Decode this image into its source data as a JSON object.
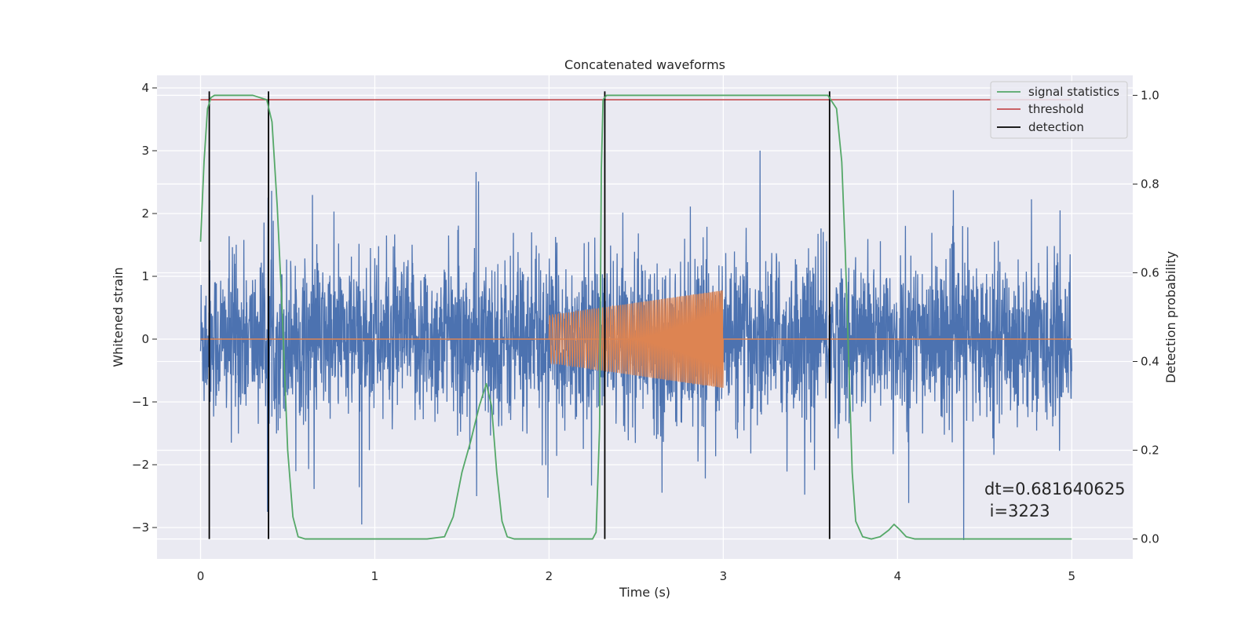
{
  "chart_data": {
    "type": "line",
    "title": "Concatenated waveforms",
    "xlabel": "Time (s)",
    "ylabel": "Whitened strain",
    "ylabel_right": "Detection probability",
    "xlim": [
      -0.25,
      5.35
    ],
    "ylim": [
      -3.5,
      4.2
    ],
    "ylim_right": [
      -0.045,
      1.045
    ],
    "x_ticks": [
      0,
      1,
      2,
      3,
      4,
      5
    ],
    "x_tick_labels": [
      "0",
      "1",
      "2",
      "3",
      "4",
      "5"
    ],
    "y_ticks": [
      4,
      3,
      2,
      1,
      0,
      -1,
      -2,
      -3
    ],
    "y_tick_labels": [
      "4",
      "3",
      "2",
      "1",
      "0",
      "−1",
      "−2",
      "−3"
    ],
    "y_ticks_right": [
      1.0,
      0.8,
      0.6,
      0.4,
      0.2,
      0.0
    ],
    "y_tick_labels_right": [
      "1.0",
      "0.8",
      "0.6",
      "0.4",
      "0.2",
      "0.0"
    ],
    "grid": true,
    "legend": {
      "position": "top-right",
      "entries": [
        {
          "label": "signal statistics",
          "color": "#55a868"
        },
        {
          "label": "threshold",
          "color": "#c44e52"
        },
        {
          "label": "detection",
          "color": "#000000"
        }
      ]
    },
    "series": [
      {
        "role": "strain-noise",
        "axis": "left",
        "color": "#4c72b0",
        "x_range": [
          0,
          5
        ],
        "y_range_approx": [
          -3.2,
          3.85
        ]
      },
      {
        "role": "injected-chirp",
        "axis": "left",
        "color": "#dd8452",
        "x_range": [
          2.0,
          3.0
        ],
        "amplitude_start": 0.38,
        "amplitude_end": 0.78
      },
      {
        "name": "signal statistics",
        "axis": "right",
        "color": "#55a868",
        "x": [
          0,
          0.02,
          0.04,
          0.06,
          0.08,
          0.1,
          0.3,
          0.38,
          0.41,
          0.44,
          0.47,
          0.5,
          0.53,
          0.56,
          0.6,
          1.0,
          1.3,
          1.4,
          1.45,
          1.5,
          1.55,
          1.6,
          1.64,
          1.67,
          1.7,
          1.73,
          1.76,
          1.8,
          2.0,
          2.25,
          2.27,
          2.29,
          2.3,
          2.31,
          2.33,
          2.4,
          3.0,
          3.6,
          3.65,
          3.68,
          3.7,
          3.72,
          3.74,
          3.76,
          3.8,
          3.85,
          3.9,
          3.95,
          3.98,
          4.01,
          4.05,
          4.1,
          4.3,
          4.8,
          5.0
        ],
        "y": [
          0.67,
          0.85,
          0.97,
          0.995,
          1.0,
          1.0,
          1.0,
          0.99,
          0.94,
          0.75,
          0.5,
          0.2,
          0.05,
          0.005,
          0.0,
          0.0,
          0.0,
          0.005,
          0.05,
          0.15,
          0.22,
          0.3,
          0.35,
          0.3,
          0.15,
          0.04,
          0.005,
          0.0,
          0.0,
          0.0,
          0.015,
          0.25,
          0.83,
          0.99,
          1.0,
          1.0,
          1.0,
          1.0,
          0.97,
          0.85,
          0.65,
          0.4,
          0.15,
          0.04,
          0.005,
          0.0,
          0.005,
          0.02,
          0.033,
          0.022,
          0.005,
          0.0,
          0.0,
          0.0,
          0.0
        ],
        "decimals": 3
      },
      {
        "name": "threshold",
        "axis": "right",
        "color": "#c44e52",
        "x": [
          0,
          5
        ],
        "y": [
          0.99,
          0.99
        ]
      },
      {
        "name": "detection",
        "axis": "right",
        "color": "#000000",
        "x": [
          0.05,
          0.39,
          2.32,
          3.61
        ],
        "y_range": [
          0.0,
          1.0
        ]
      }
    ],
    "annotation": {
      "lines": [
        "dt=0.681640625",
        " i=3223"
      ]
    }
  }
}
